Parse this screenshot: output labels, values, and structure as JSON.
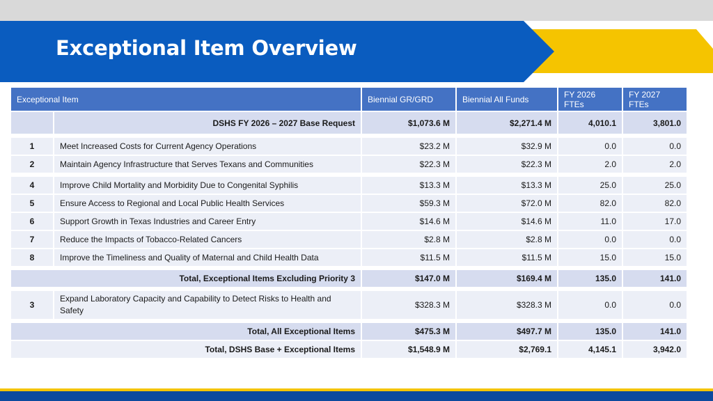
{
  "slide": {
    "title": "Exceptional Item Overview",
    "colors": {
      "blue": "#0a5cbf",
      "gold": "#f5c400",
      "header": "#4472c4",
      "row_shade": "#d6dcef",
      "row_light": "#eceff7"
    }
  },
  "table": {
    "headers": {
      "item": "Exceptional Item",
      "gr": "Biennial GR/GRD",
      "all": "Biennial All Funds",
      "fy26": "FY 2026 FTEs",
      "fy27": "FY 2027 FTEs"
    },
    "base": {
      "label": "DSHS FY 2026 – 2027 Base Request",
      "gr": "$1,073.6 M",
      "all": "$2,271.4 M",
      "fy26": "4,010.1",
      "fy27": "3,801.0"
    },
    "items": [
      {
        "priority": "1",
        "label": "Meet Increased Costs for Current Agency Operations",
        "gr": "$23.2 M",
        "all": "$32.9 M",
        "fy26": "0.0",
        "fy27": "0.0"
      },
      {
        "priority": "2",
        "label": "Maintain Agency Infrastructure that Serves Texans and Communities",
        "gr": "$22.3 M",
        "all": "$22.3 M",
        "fy26": "2.0",
        "fy27": "2.0"
      },
      {
        "priority": "4",
        "label": "Improve Child Mortality and Morbidity Due to Congenital Syphilis",
        "gr": "$13.3 M",
        "all": "$13.3 M",
        "fy26": "25.0",
        "fy27": "25.0"
      },
      {
        "priority": "5",
        "label": "Ensure Access to Regional and Local Public Health Services",
        "gr": "$59.3 M",
        "all": "$72.0 M",
        "fy26": "82.0",
        "fy27": "82.0"
      },
      {
        "priority": "6",
        "label": "Support Growth in Texas Industries and Career Entry",
        "gr": "$14.6 M",
        "all": "$14.6 M",
        "fy26": "11.0",
        "fy27": "17.0"
      },
      {
        "priority": "7",
        "label": "Reduce the Impacts of Tobacco-Related Cancers",
        "gr": "$2.8 M",
        "all": "$2.8 M",
        "fy26": "0.0",
        "fy27": "0.0"
      },
      {
        "priority": "8",
        "label": "Improve the Timeliness and Quality of Maternal and Child Health Data",
        "gr": "$11.5 M",
        "all": "$11.5 M",
        "fy26": "15.0",
        "fy27": "15.0"
      }
    ],
    "total_excl": {
      "label": "Total, Exceptional Items Excluding Priority 3",
      "gr": "$147.0 M",
      "all": "$169.4 M",
      "fy26": "135.0",
      "fy27": "141.0"
    },
    "item3": {
      "priority": "3",
      "label": "Expand Laboratory Capacity and Capability to Detect Risks to Health and Safety",
      "gr": "$328.3 M",
      "all": "$328.3 M",
      "fy26": "0.0",
      "fy27": "0.0"
    },
    "total_all": {
      "label": "Total, All Exceptional Items",
      "gr": "$475.3 M",
      "all": "$497.7 M",
      "fy26": "135.0",
      "fy27": "141.0"
    },
    "total_base": {
      "label": "Total, DSHS Base + Exceptional Items",
      "gr": "$1,548.9 M",
      "all": "$2,769.1",
      "fy26": "4,145.1",
      "fy27": "3,942.0"
    }
  }
}
